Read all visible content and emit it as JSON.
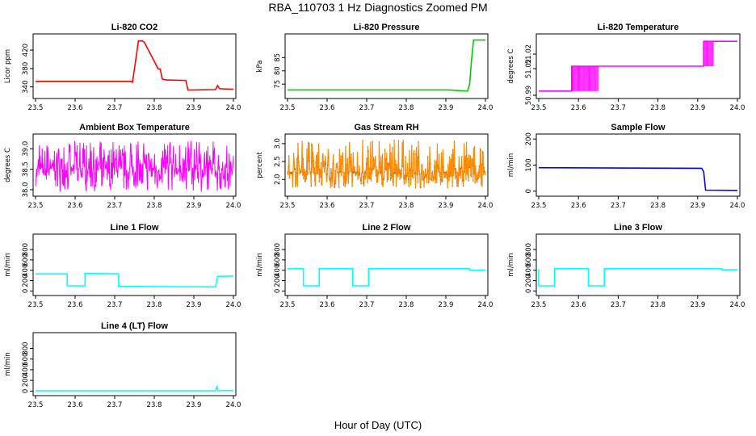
{
  "figure": {
    "title": "RBA_110703  1 Hz Diagnostics Zoomed PM",
    "xlabel": "Hour of Day (UTC)"
  },
  "chart_data": [
    {
      "type": "line",
      "title": "Li-820 CO2",
      "ylabel": "Licor ppm",
      "color": "#ff0000",
      "xlim": [
        23.5,
        24.0
      ],
      "ylim": [
        320,
        450
      ],
      "xticks": [
        "23.5",
        "23.6",
        "23.7",
        "23.8",
        "23.9",
        "24.0"
      ],
      "yticks": [
        340,
        380,
        420
      ],
      "x": [
        23.5,
        23.74,
        23.745,
        23.76,
        23.77,
        23.775,
        23.81,
        23.815,
        23.82,
        23.83,
        23.88,
        23.885,
        23.955,
        23.96,
        23.965,
        24.0
      ],
      "y": [
        352,
        352,
        350,
        440,
        440,
        437,
        379,
        379,
        357,
        355,
        354,
        333,
        334,
        343,
        336,
        335
      ]
    },
    {
      "type": "line",
      "title": "Li-820 Pressure",
      "ylabel": "kPa",
      "color": "#00cc00",
      "xlim": [
        23.5,
        24.0
      ],
      "ylim": [
        70.5,
        93
      ],
      "xticks": [
        "23.5",
        "23.6",
        "23.7",
        "23.8",
        "23.9",
        "24.0"
      ],
      "yticks": [
        75,
        80,
        85
      ],
      "x": [
        23.5,
        23.91,
        23.94,
        23.955,
        23.96,
        23.965,
        23.97,
        23.99,
        24.0
      ],
      "y": [
        72.8,
        72.8,
        72.5,
        72.4,
        75,
        84,
        91.6,
        91.6,
        91.6
      ]
    },
    {
      "type": "line",
      "title": "Li-820 Temperature",
      "ylabel": "degrees C",
      "color": "#ff00ff",
      "xlim": [
        23.5,
        24.0
      ],
      "ylim": [
        50.985,
        51.045
      ],
      "xticks": [
        "23.5",
        "23.6",
        "23.7",
        "23.8",
        "23.9",
        "24.0"
      ],
      "yticks": [
        "50.99",
        "51.02",
        "51.02"
      ],
      "x": [
        23.5,
        23.583,
        23.583,
        23.65,
        23.65,
        23.915,
        23.915,
        23.94,
        23.94,
        24.0
      ],
      "y": [
        50.99,
        50.99,
        51.015,
        51.015,
        51.015,
        51.015,
        51.04,
        51.04,
        51.04,
        51.04
      ]
    },
    {
      "type": "line",
      "title": "Ambient Box Temperature",
      "ylabel": "degrees C",
      "color": "#ff00ff",
      "xlim": [
        23.5,
        24.0
      ],
      "ylim": [
        37.9,
        39.3
      ],
      "xticks": [
        "23.5",
        "23.6",
        "23.7",
        "23.8",
        "23.9",
        "24.0"
      ],
      "yticks": [
        "38.0",
        "38.5",
        "39.0"
      ],
      "x": [
        23.5,
        24.0
      ],
      "y": [
        38.5,
        38.5
      ],
      "noise_range": [
        37.95,
        39.2
      ]
    },
    {
      "type": "scatter",
      "title": "Gas Stream RH",
      "ylabel": "percent",
      "color": "#ff8c00",
      "xlim": [
        23.5,
        24.0
      ],
      "ylim": [
        1.6,
        3.2
      ],
      "xticks": [
        "23.5",
        "23.6",
        "23.7",
        "23.8",
        "23.9",
        "24.0"
      ],
      "yticks": [
        "2.0",
        "2.5",
        "3.0"
      ],
      "x": [
        23.5,
        24.0
      ],
      "y": [
        2.2,
        2.2
      ],
      "noise_range": [
        1.75,
        3.1
      ]
    },
    {
      "type": "line",
      "title": "Sample Flow",
      "ylabel": "ml/min",
      "color": "#0000ff",
      "xlim": [
        23.5,
        24.0
      ],
      "ylim": [
        -10,
        210
      ],
      "xticks": [
        "23.5",
        "23.6",
        "23.7",
        "23.8",
        "23.9",
        "24.0"
      ],
      "yticks": [
        0,
        100,
        200
      ],
      "x": [
        23.5,
        23.91,
        23.915,
        23.92,
        24.0
      ],
      "y": [
        90,
        88,
        75,
        4,
        3
      ]
    },
    {
      "type": "line",
      "title": "Line 1 Flow",
      "ylabel": "ml/min",
      "color": "#00ffff",
      "xlim": [
        23.5,
        24.0
      ],
      "ylim": [
        -40,
        1050
      ],
      "xticks": [
        "23.5",
        "23.6",
        "23.7",
        "23.8",
        "23.9",
        "24.0"
      ],
      "yticks": [
        0,
        200,
        400,
        600,
        800
      ],
      "x": [
        23.5,
        23.58,
        23.58,
        23.625,
        23.625,
        23.71,
        23.71,
        23.955,
        23.96,
        24.0
      ],
      "y": [
        330,
        330,
        100,
        100,
        340,
        330,
        90,
        80,
        280,
        290
      ]
    },
    {
      "type": "line",
      "title": "Line 2 Flow",
      "ylabel": "ml/min",
      "color": "#00ffff",
      "xlim": [
        23.5,
        24.0
      ],
      "ylim": [
        -40,
        1050
      ],
      "xticks": [
        "23.5",
        "23.6",
        "23.7",
        "23.8",
        "23.9",
        "24.0"
      ],
      "yticks": [
        0,
        200,
        400,
        600,
        800
      ],
      "x": [
        23.5,
        23.54,
        23.54,
        23.58,
        23.58,
        23.665,
        23.665,
        23.705,
        23.705,
        23.96,
        23.96,
        24.0
      ],
      "y": [
        430,
        430,
        100,
        100,
        430,
        430,
        100,
        100,
        430,
        430,
        400,
        400
      ]
    },
    {
      "type": "line",
      "title": "Line 3 Flow",
      "ylabel": "ml/min",
      "color": "#00ffff",
      "xlim": [
        23.5,
        24.0
      ],
      "ylim": [
        -40,
        1050
      ],
      "xticks": [
        "23.5",
        "23.6",
        "23.7",
        "23.8",
        "23.9",
        "24.0"
      ],
      "yticks": [
        0,
        200,
        400,
        600,
        800
      ],
      "x": [
        23.5,
        23.5,
        23.54,
        23.54,
        23.625,
        23.625,
        23.665,
        23.665,
        23.96,
        23.96,
        24.0
      ],
      "y": [
        420,
        100,
        100,
        430,
        430,
        100,
        100,
        430,
        430,
        410,
        410
      ]
    },
    {
      "type": "line",
      "title": "Line 4 (LT) Flow",
      "ylabel": "ml/min",
      "color": "#00ffff",
      "xlim": [
        23.5,
        24.0
      ],
      "ylim": [
        -40,
        1050
      ],
      "xticks": [
        "23.5",
        "23.6",
        "23.7",
        "23.8",
        "23.9",
        "24.0"
      ],
      "yticks": [
        0,
        200,
        400,
        600,
        800
      ],
      "x": [
        23.5,
        23.955,
        23.958,
        23.961,
        23.965,
        24.0
      ],
      "y": [
        5,
        5,
        80,
        5,
        10,
        10
      ]
    }
  ]
}
